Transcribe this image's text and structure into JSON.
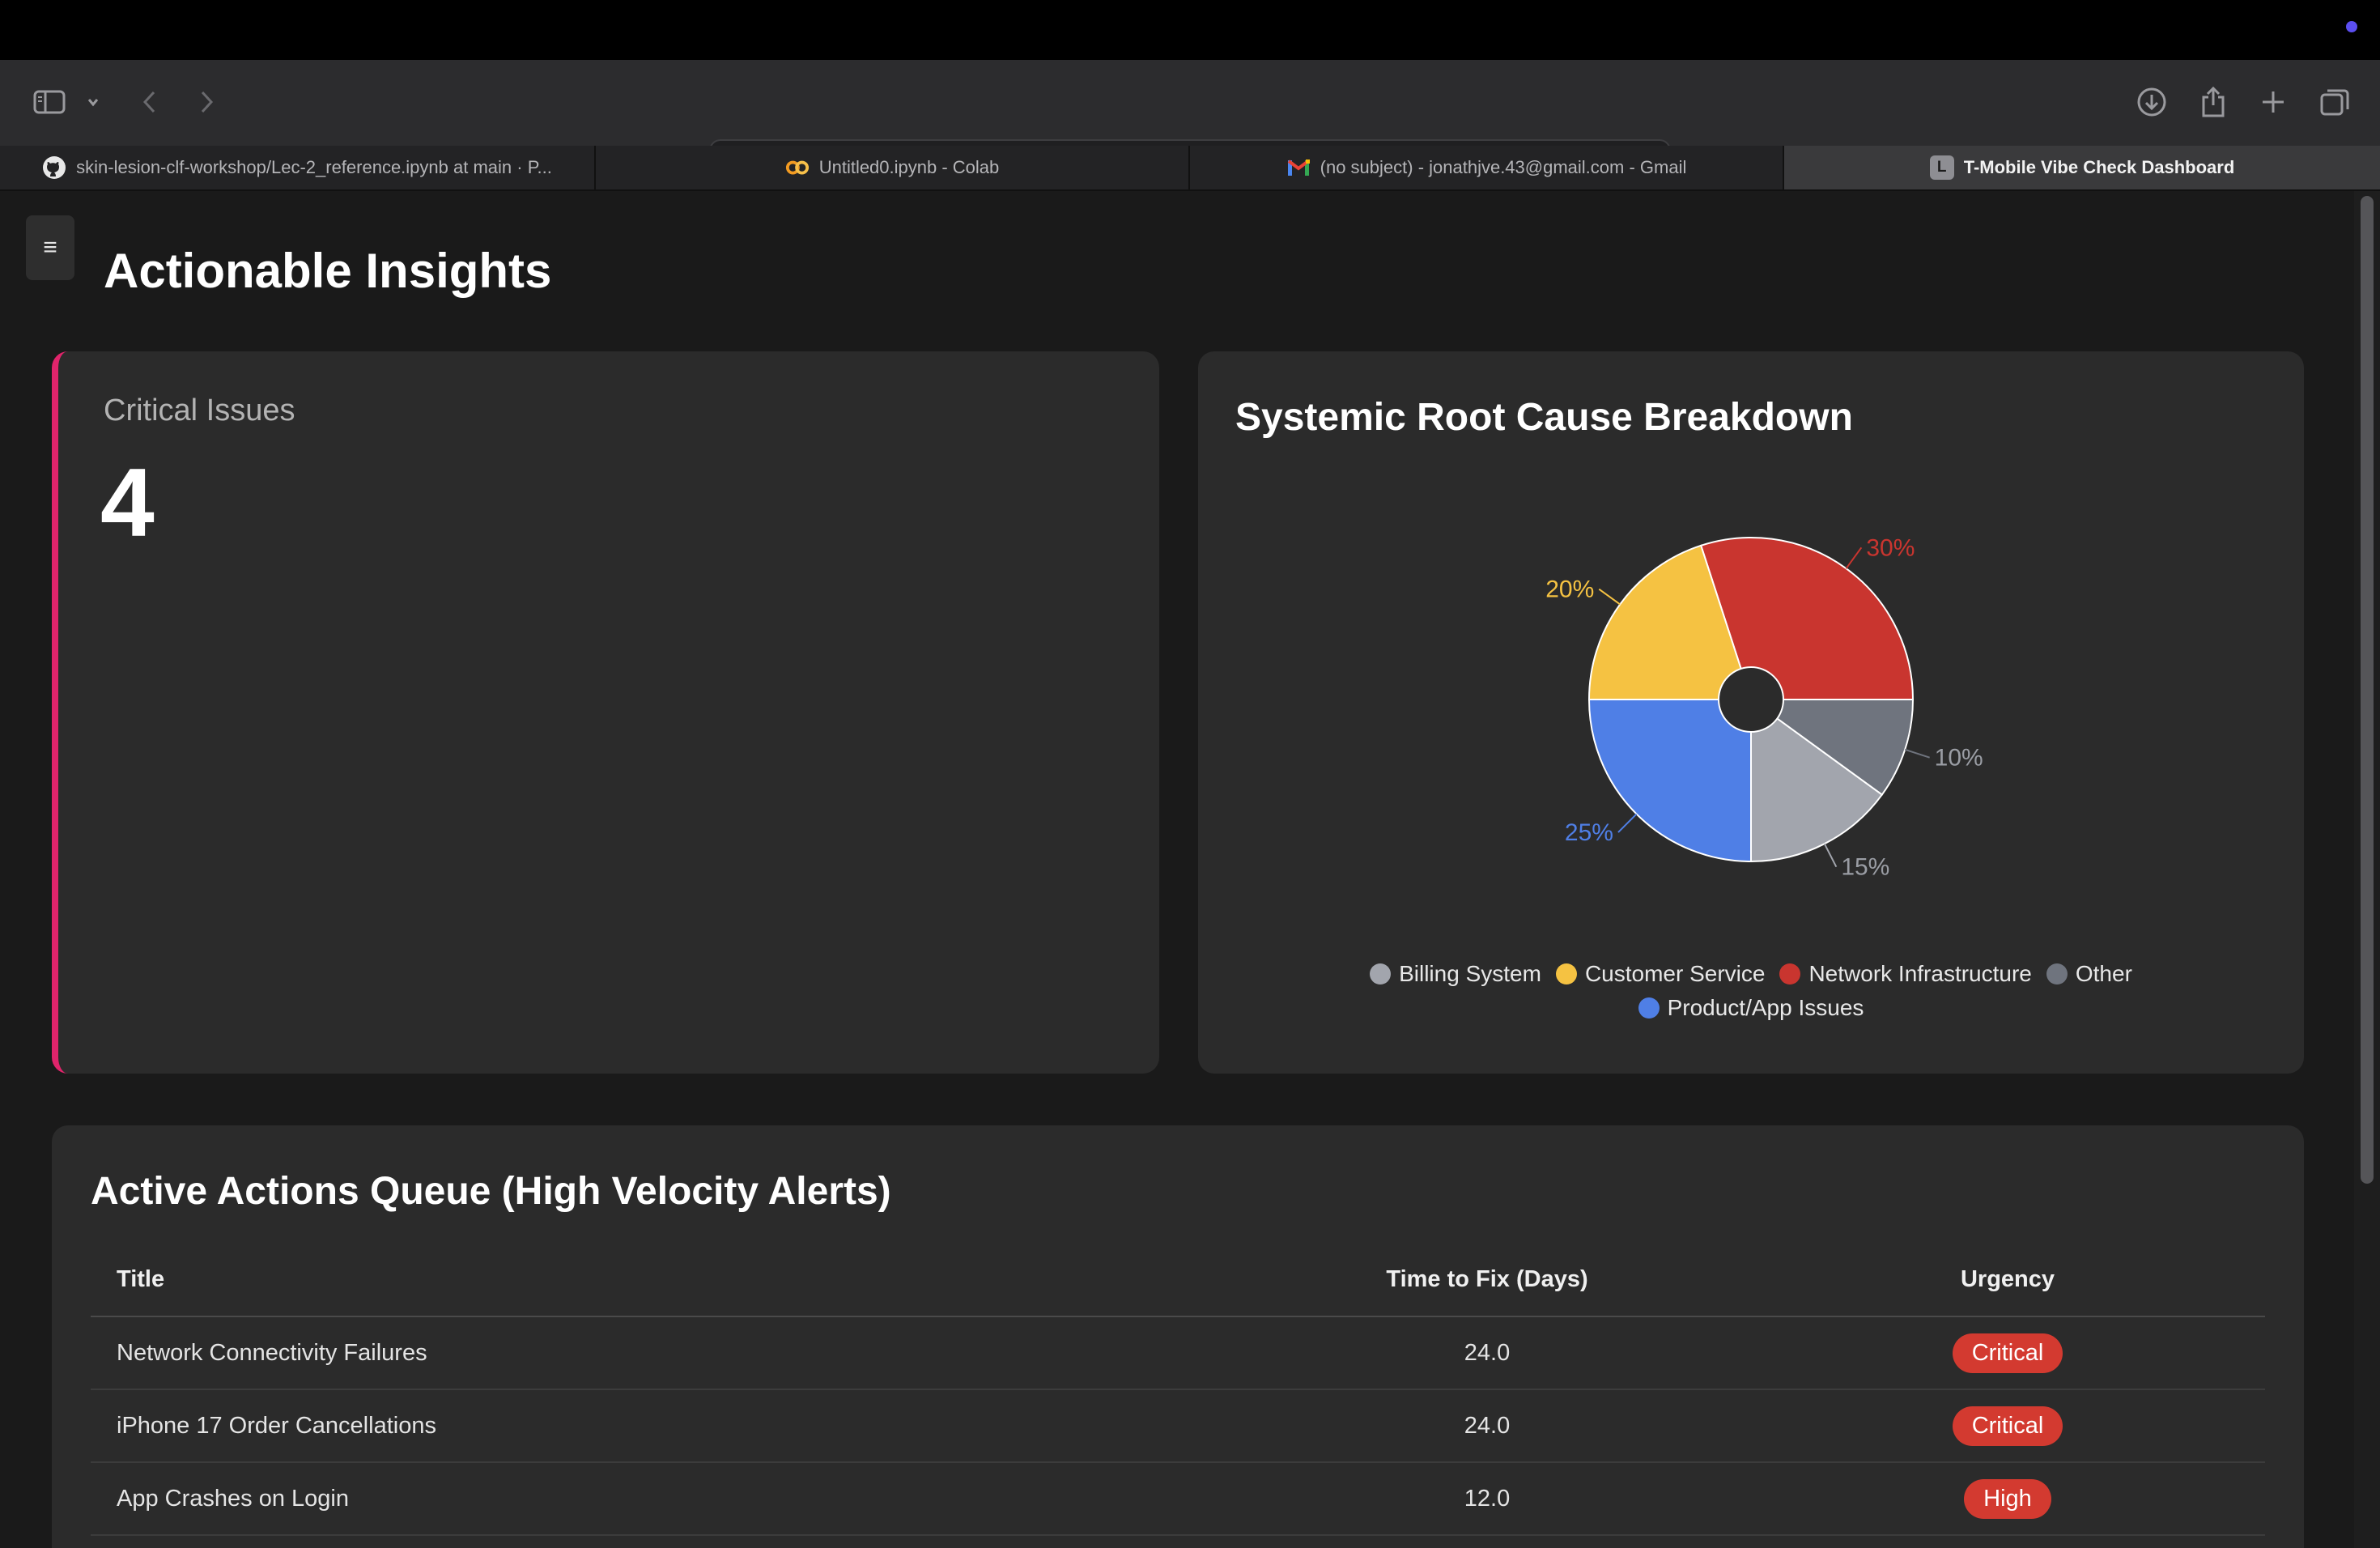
{
  "browser": {
    "url": "localhost",
    "tabs": [
      {
        "label": "skin-lesion-clf-workshop/Lec-2_reference.ipynb at main · P...",
        "icon": "github-icon"
      },
      {
        "label": "Untitled0.ipynb - Colab",
        "icon": "colab-icon"
      },
      {
        "label": "(no subject) - jonathjve.43@gmail.com - Gmail",
        "icon": "gmail-icon"
      },
      {
        "label": "T-Mobile Vibe Check Dashboard",
        "icon": "letter-l-icon",
        "favicon_letter": "L",
        "active": true
      }
    ]
  },
  "page": {
    "title": "Actionable Insights",
    "menu_glyph": "≡"
  },
  "critical": {
    "label": "Critical Issues",
    "value": "4",
    "accent": "#e0246b"
  },
  "chart": {
    "title": "Systemic Root Cause Breakdown"
  },
  "chart_data": {
    "type": "pie",
    "title": "Systemic Root Cause Breakdown",
    "donut": true,
    "legend_position": "bottom",
    "slices": [
      {
        "name": "Network Infrastructure",
        "value": 30,
        "label": "30%",
        "color": "#c9352f"
      },
      {
        "name": "Other",
        "value": 10,
        "label": "10%",
        "color": "#6f747e"
      },
      {
        "name": "Billing System",
        "value": 15,
        "label": "15%",
        "color": "#a2a5ad"
      },
      {
        "name": "Product/App Issues",
        "value": 25,
        "label": "25%",
        "color": "#4f7fe6"
      },
      {
        "name": "Customer Service",
        "value": 20,
        "label": "20%",
        "color": "#f5c242"
      }
    ],
    "legend": [
      [
        "Billing System",
        "Customer Service",
        "Network Infrastructure",
        "Other"
      ],
      [
        "Product/App Issues"
      ]
    ]
  },
  "queue": {
    "title": "Active Actions Queue (High Velocity Alerts)",
    "columns": [
      "Title",
      "Time to Fix (Days)",
      "Urgency"
    ],
    "rows": [
      {
        "title": "Network Connectivity Failures",
        "time": "24.0",
        "urgency": "Critical"
      },
      {
        "title": "iPhone 17 Order Cancellations",
        "time": "24.0",
        "urgency": "Critical"
      },
      {
        "title": "App Crashes on Login",
        "time": "12.0",
        "urgency": "High"
      }
    ],
    "badge_color": "#d33a30"
  }
}
